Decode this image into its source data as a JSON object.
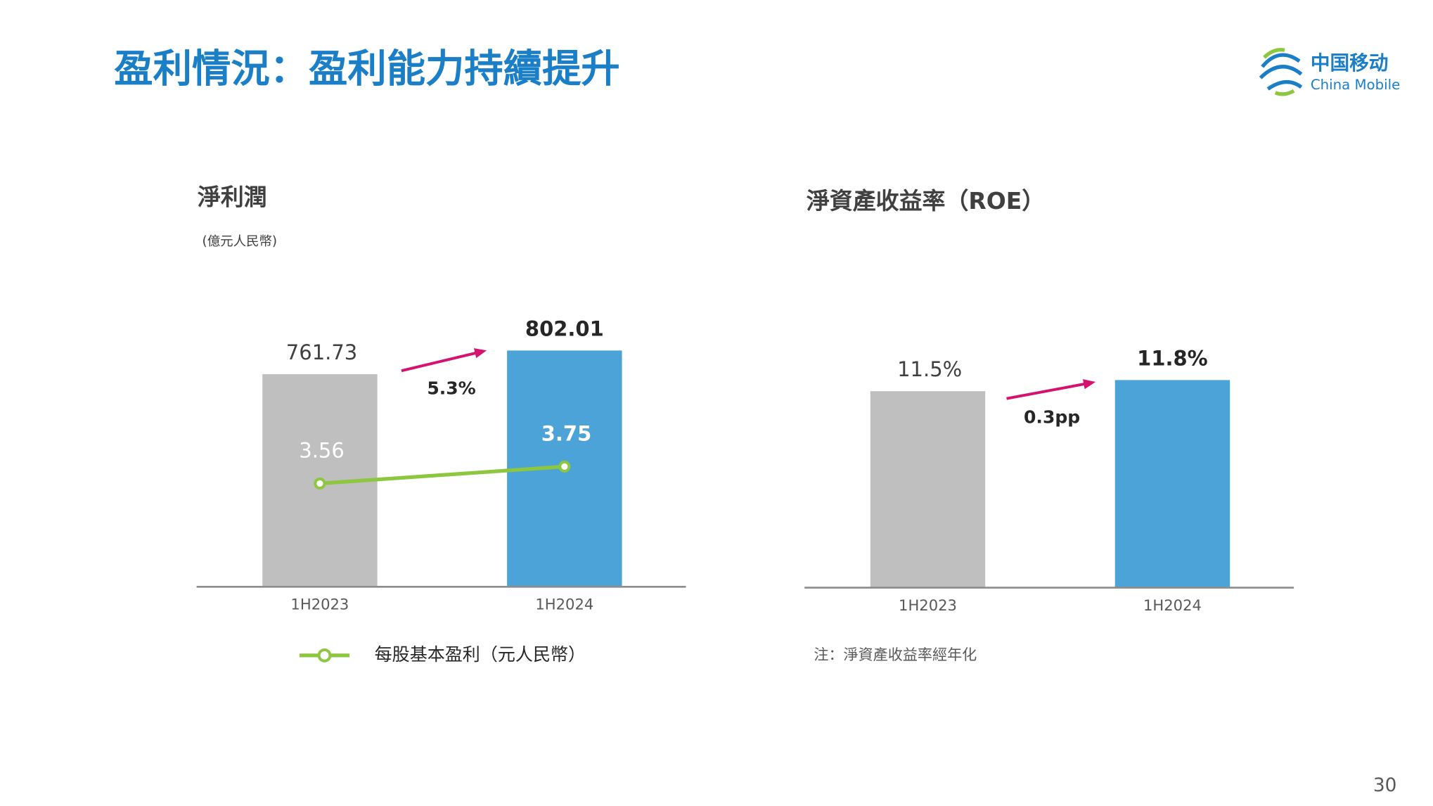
{
  "title": "盈利情況：盈利能力持續提升",
  "logo": {
    "name": "中国移动",
    "name_en": "China Mobile"
  },
  "page_number": "30",
  "chart_data": [
    {
      "type": "bar",
      "title": "淨利潤",
      "subtitle": "(億元人民幣)",
      "categories": [
        "1H2023",
        "1H2024"
      ],
      "series": [
        {
          "type": "bar",
          "colors": [
            "#bfbfbf",
            "#4ba3d8"
          ],
          "values": [
            761.73,
            802.01
          ]
        },
        {
          "type": "line",
          "name": "每股基本盈利（元人民幣）",
          "color": "#8dc63f",
          "values": [
            3.56,
            3.75
          ],
          "axis": "y2"
        }
      ],
      "annotations": [
        "5.3%"
      ],
      "ylim": [
        400,
        900
      ],
      "y2lim": [
        2.4,
        5.7
      ]
    },
    {
      "type": "bar",
      "title": "淨資產收益率（ROE）",
      "categories": [
        "1H2023",
        "1H2024"
      ],
      "series": [
        {
          "type": "bar",
          "colors": [
            "#bfbfbf",
            "#4ba3d8"
          ],
          "values": [
            11.5,
            11.8
          ],
          "value_labels": [
            "11.5%",
            "11.8%"
          ]
        }
      ],
      "annotations": [
        "0.3pp"
      ],
      "note": "注：淨資產收益率經年化",
      "ylim": [
        6.2,
        14
      ]
    }
  ]
}
